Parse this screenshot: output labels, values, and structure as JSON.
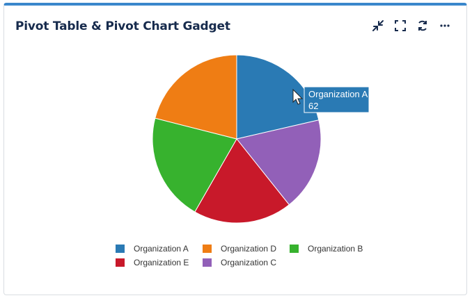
{
  "gadget": {
    "title": "Pivot Table & Pivot Chart Gadget",
    "toolbar_icons": [
      "minimize-icon",
      "expand-icon",
      "refresh-icon",
      "more-icon"
    ]
  },
  "chart_data": {
    "type": "pie",
    "slices": [
      {
        "label": "Organization A",
        "value": 62,
        "color": "#2a7ab4"
      },
      {
        "label": "Organization C",
        "value": 52,
        "color": "#9260b8"
      },
      {
        "label": "Organization E",
        "value": 55,
        "color": "#c8192a"
      },
      {
        "label": "Organization B",
        "value": 60,
        "color": "#37b22e"
      },
      {
        "label": "Organization D",
        "value": 61,
        "color": "#ef7d14"
      }
    ],
    "legend": {
      "placement": "bottom",
      "order": [
        "Organization A",
        "Organization D",
        "Organization B",
        "Organization E",
        "Organization C"
      ]
    },
    "tooltip": {
      "label": "Organization A",
      "value": "62"
    }
  }
}
